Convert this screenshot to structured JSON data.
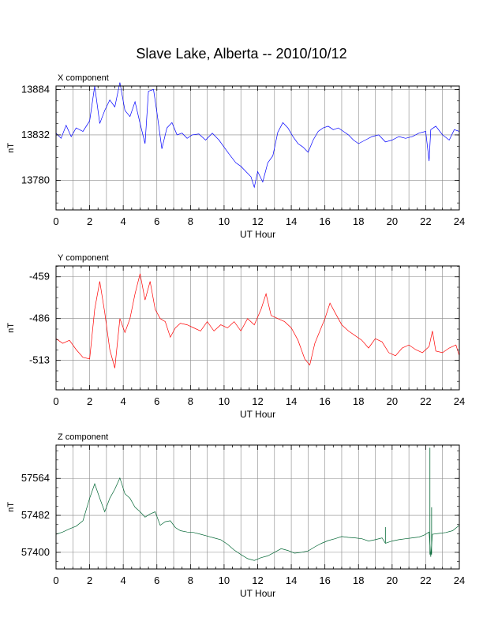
{
  "title": "Slave Lake, Alberta -- 2010/10/12",
  "colors": {
    "x": "#0000ff",
    "y": "#ff0000",
    "z": "#006633",
    "grid": "#888888"
  },
  "chart_data": [
    {
      "type": "line",
      "panel_title": "X component",
      "xlabel": "UT Hour",
      "ylabel": "nT",
      "xlim": [
        0,
        24
      ],
      "ylim": [
        13746,
        13888
      ],
      "x_ticks": [
        0,
        2,
        4,
        6,
        8,
        10,
        12,
        14,
        16,
        18,
        20,
        22,
        24
      ],
      "y_ticks": [
        13780,
        13832,
        13884
      ],
      "grid": true,
      "color": "#0000ff",
      "points": [
        [
          0,
          13834
        ],
        [
          0.3,
          13828
        ],
        [
          0.6,
          13843
        ],
        [
          0.9,
          13830
        ],
        [
          1.2,
          13840
        ],
        [
          1.6,
          13836
        ],
        [
          2.0,
          13848
        ],
        [
          2.3,
          13888
        ],
        [
          2.6,
          13845
        ],
        [
          2.9,
          13860
        ],
        [
          3.2,
          13872
        ],
        [
          3.5,
          13864
        ],
        [
          3.8,
          13892
        ],
        [
          4.1,
          13860
        ],
        [
          4.4,
          13853
        ],
        [
          4.7,
          13870
        ],
        [
          5.0,
          13845
        ],
        [
          5.3,
          13822
        ],
        [
          5.5,
          13882
        ],
        [
          5.8,
          13884
        ],
        [
          6.0,
          13858
        ],
        [
          6.3,
          13816
        ],
        [
          6.6,
          13840
        ],
        [
          6.9,
          13846
        ],
        [
          7.2,
          13832
        ],
        [
          7.5,
          13834
        ],
        [
          7.8,
          13828
        ],
        [
          8.1,
          13832
        ],
        [
          8.5,
          13833
        ],
        [
          8.9,
          13826
        ],
        [
          9.3,
          13834
        ],
        [
          9.7,
          13826
        ],
        [
          10.0,
          13818
        ],
        [
          10.3,
          13810
        ],
        [
          10.7,
          13800
        ],
        [
          11.0,
          13796
        ],
        [
          11.3,
          13790
        ],
        [
          11.6,
          13784
        ],
        [
          11.8,
          13772
        ],
        [
          12.0,
          13790
        ],
        [
          12.3,
          13778
        ],
        [
          12.6,
          13800
        ],
        [
          12.9,
          13808
        ],
        [
          13.2,
          13835
        ],
        [
          13.5,
          13846
        ],
        [
          13.8,
          13840
        ],
        [
          14.1,
          13830
        ],
        [
          14.4,
          13822
        ],
        [
          14.7,
          13818
        ],
        [
          15.0,
          13812
        ],
        [
          15.3,
          13826
        ],
        [
          15.6,
          13836
        ],
        [
          15.9,
          13840
        ],
        [
          16.2,
          13842
        ],
        [
          16.5,
          13838
        ],
        [
          16.8,
          13840
        ],
        [
          17.1,
          13836
        ],
        [
          17.4,
          13832
        ],
        [
          17.7,
          13826
        ],
        [
          18.0,
          13822
        ],
        [
          18.4,
          13826
        ],
        [
          18.8,
          13830
        ],
        [
          19.2,
          13832
        ],
        [
          19.6,
          13824
        ],
        [
          20.0,
          13826
        ],
        [
          20.4,
          13830
        ],
        [
          20.8,
          13828
        ],
        [
          21.2,
          13830
        ],
        [
          21.6,
          13834
        ],
        [
          22.0,
          13836
        ],
        [
          22.2,
          13802
        ],
        [
          22.3,
          13838
        ],
        [
          22.6,
          13842
        ],
        [
          23.0,
          13832
        ],
        [
          23.4,
          13826
        ],
        [
          23.7,
          13838
        ],
        [
          24.0,
          13836
        ]
      ]
    },
    {
      "type": "line",
      "panel_title": "Y component",
      "xlabel": "UT Hour",
      "ylabel": "nT",
      "xlim": [
        0,
        24
      ],
      "ylim": [
        -532,
        -452
      ],
      "x_ticks": [
        0,
        2,
        4,
        6,
        8,
        10,
        12,
        14,
        16,
        18,
        20,
        22,
        24
      ],
      "y_ticks": [
        -459,
        -486,
        -513
      ],
      "grid": true,
      "color": "#ff0000",
      "points": [
        [
          0,
          -499
        ],
        [
          0.4,
          -502
        ],
        [
          0.8,
          -500
        ],
        [
          1.2,
          -506
        ],
        [
          1.6,
          -511
        ],
        [
          2.0,
          -512
        ],
        [
          2.3,
          -480
        ],
        [
          2.6,
          -462
        ],
        [
          2.9,
          -482
        ],
        [
          3.2,
          -506
        ],
        [
          3.5,
          -518
        ],
        [
          3.8,
          -486
        ],
        [
          4.1,
          -495
        ],
        [
          4.4,
          -486
        ],
        [
          4.7,
          -470
        ],
        [
          5.0,
          -457
        ],
        [
          5.3,
          -474
        ],
        [
          5.6,
          -462
        ],
        [
          5.9,
          -480
        ],
        [
          6.2,
          -486
        ],
        [
          6.5,
          -488
        ],
        [
          6.8,
          -498
        ],
        [
          7.1,
          -492
        ],
        [
          7.4,
          -489
        ],
        [
          7.8,
          -490
        ],
        [
          8.2,
          -492
        ],
        [
          8.6,
          -494
        ],
        [
          9.0,
          -488
        ],
        [
          9.4,
          -494
        ],
        [
          9.8,
          -490
        ],
        [
          10.2,
          -492
        ],
        [
          10.6,
          -488
        ],
        [
          11.0,
          -494
        ],
        [
          11.4,
          -486
        ],
        [
          11.8,
          -490
        ],
        [
          12.2,
          -480
        ],
        [
          12.5,
          -470
        ],
        [
          12.8,
          -484
        ],
        [
          13.2,
          -486
        ],
        [
          13.6,
          -488
        ],
        [
          14.0,
          -492
        ],
        [
          14.4,
          -500
        ],
        [
          14.8,
          -512
        ],
        [
          15.1,
          -516
        ],
        [
          15.4,
          -502
        ],
        [
          15.7,
          -494
        ],
        [
          16.0,
          -486
        ],
        [
          16.3,
          -476
        ],
        [
          16.6,
          -482
        ],
        [
          17.0,
          -490
        ],
        [
          17.4,
          -494
        ],
        [
          17.8,
          -497
        ],
        [
          18.2,
          -500
        ],
        [
          18.6,
          -505
        ],
        [
          19.0,
          -499
        ],
        [
          19.4,
          -501
        ],
        [
          19.8,
          -508
        ],
        [
          20.2,
          -510
        ],
        [
          20.6,
          -505
        ],
        [
          21.0,
          -503
        ],
        [
          21.4,
          -506
        ],
        [
          21.8,
          -508
        ],
        [
          22.2,
          -504
        ],
        [
          22.4,
          -494
        ],
        [
          22.6,
          -507
        ],
        [
          23.0,
          -508
        ],
        [
          23.4,
          -505
        ],
        [
          23.8,
          -503
        ],
        [
          24.0,
          -510
        ]
      ]
    },
    {
      "type": "line",
      "panel_title": "Z component",
      "xlabel": "UT Hour",
      "ylabel": "nT",
      "xlim": [
        0,
        24
      ],
      "ylim": [
        57363,
        57638
      ],
      "x_ticks": [
        0,
        2,
        4,
        6,
        8,
        10,
        12,
        14,
        16,
        18,
        20,
        22,
        24
      ],
      "y_ticks": [
        57400,
        57482,
        57564
      ],
      "grid": true,
      "color": "#006633",
      "points": [
        [
          0,
          57440
        ],
        [
          0.4,
          57445
        ],
        [
          0.8,
          57452
        ],
        [
          1.2,
          57458
        ],
        [
          1.6,
          57470
        ],
        [
          2.0,
          57520
        ],
        [
          2.3,
          57552
        ],
        [
          2.6,
          57520
        ],
        [
          2.9,
          57490
        ],
        [
          3.2,
          57520
        ],
        [
          3.5,
          57540
        ],
        [
          3.8,
          57565
        ],
        [
          4.1,
          57530
        ],
        [
          4.4,
          57520
        ],
        [
          4.7,
          57500
        ],
        [
          5.0,
          57490
        ],
        [
          5.3,
          57478
        ],
        [
          5.6,
          57485
        ],
        [
          5.9,
          57490
        ],
        [
          6.2,
          57460
        ],
        [
          6.5,
          57468
        ],
        [
          6.8,
          57470
        ],
        [
          7.1,
          57455
        ],
        [
          7.4,
          57448
        ],
        [
          7.8,
          57445
        ],
        [
          8.2,
          57444
        ],
        [
          8.6,
          57440
        ],
        [
          9.0,
          57436
        ],
        [
          9.4,
          57432
        ],
        [
          9.8,
          57428
        ],
        [
          10.2,
          57418
        ],
        [
          10.6,
          57405
        ],
        [
          11.0,
          57395
        ],
        [
          11.4,
          57386
        ],
        [
          11.8,
          57382
        ],
        [
          12.2,
          57388
        ],
        [
          12.6,
          57392
        ],
        [
          13.0,
          57400
        ],
        [
          13.4,
          57408
        ],
        [
          13.8,
          57404
        ],
        [
          14.2,
          57398
        ],
        [
          14.6,
          57400
        ],
        [
          15.0,
          57403
        ],
        [
          15.4,
          57412
        ],
        [
          15.8,
          57420
        ],
        [
          16.2,
          57426
        ],
        [
          16.6,
          57430
        ],
        [
          17.0,
          57435
        ],
        [
          17.4,
          57433
        ],
        [
          17.8,
          57432
        ],
        [
          18.2,
          57430
        ],
        [
          18.6,
          57425
        ],
        [
          19.0,
          57428
        ],
        [
          19.4,
          57432
        ],
        [
          19.6,
          57420
        ],
        [
          20.0,
          57425
        ],
        [
          20.4,
          57428
        ],
        [
          20.8,
          57430
        ],
        [
          21.2,
          57432
        ],
        [
          21.6,
          57434
        ],
        [
          21.9,
          57438
        ],
        [
          22.2,
          57445
        ],
        [
          22.3,
          57390
        ],
        [
          22.4,
          57440
        ],
        [
          22.8,
          57442
        ],
        [
          23.2,
          57444
        ],
        [
          23.6,
          57448
        ],
        [
          24.0,
          57460
        ]
      ],
      "spikes": [
        [
          19.6,
          57420,
          57456
        ],
        [
          22.25,
          57395,
          57632
        ],
        [
          22.35,
          57395,
          57500
        ]
      ]
    }
  ]
}
